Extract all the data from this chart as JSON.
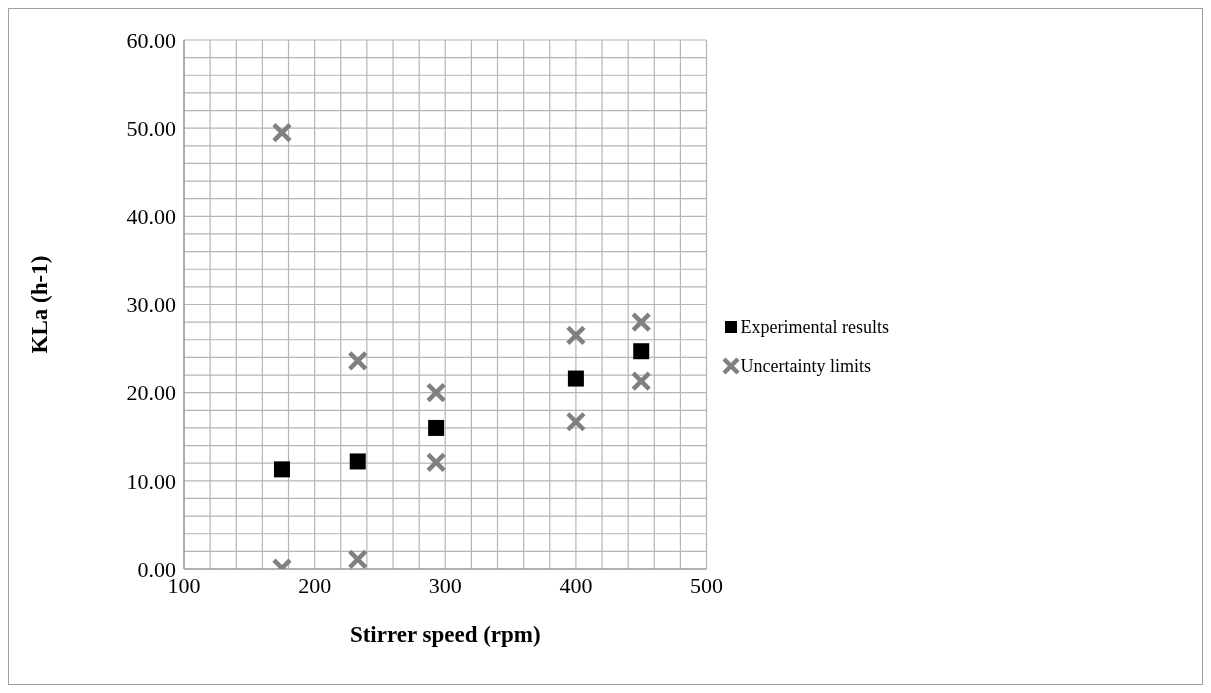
{
  "chart_data": {
    "type": "scatter",
    "xlabel": "Stirrer speed (rpm)",
    "ylabel": "KLa (h-1)",
    "xlim": [
      100,
      500
    ],
    "xticks": [
      100,
      {
        "value": 120,
        "label": null
      },
      {
        "value": 140,
        "label": null
      },
      {
        "value": 160,
        "label": null
      },
      {
        "value": 180,
        "label": null
      },
      200,
      {
        "value": 220,
        "label": null
      },
      {
        "value": 240,
        "label": null
      },
      {
        "value": 260,
        "label": null
      },
      {
        "value": 280,
        "label": null
      },
      300,
      {
        "value": 320,
        "label": null
      },
      {
        "value": 340,
        "label": null
      },
      {
        "value": 360,
        "label": null
      },
      {
        "value": 380,
        "label": null
      },
      400,
      {
        "value": 420,
        "label": null
      },
      {
        "value": 440,
        "label": null
      },
      {
        "value": 460,
        "label": null
      },
      {
        "value": 480,
        "label": null
      },
      500
    ],
    "ylim": [
      0,
      60
    ],
    "yticks": [
      {
        "value": 0,
        "label": "0.00"
      },
      {
        "value": 2,
        "label": null
      },
      {
        "value": 4,
        "label": null
      },
      {
        "value": 6,
        "label": null
      },
      {
        "value": 8,
        "label": null
      },
      {
        "value": 10,
        "label": "10.00"
      },
      {
        "value": 12,
        "label": null
      },
      {
        "value": 14,
        "label": null
      },
      {
        "value": 16,
        "label": null
      },
      {
        "value": 18,
        "label": null
      },
      {
        "value": 20,
        "label": "20.00"
      },
      {
        "value": 22,
        "label": null
      },
      {
        "value": 24,
        "label": null
      },
      {
        "value": 26,
        "label": null
      },
      {
        "value": 28,
        "label": null
      },
      {
        "value": 30,
        "label": "30.00"
      },
      {
        "value": 32,
        "label": null
      },
      {
        "value": 34,
        "label": null
      },
      {
        "value": 36,
        "label": null
      },
      {
        "value": 38,
        "label": null
      },
      {
        "value": 40,
        "label": "40.00"
      },
      {
        "value": 42,
        "label": null
      },
      {
        "value": 44,
        "label": null
      },
      {
        "value": 46,
        "label": null
      },
      {
        "value": 48,
        "label": null
      },
      {
        "value": 50,
        "label": "50.00"
      },
      {
        "value": 52,
        "label": null
      },
      {
        "value": 54,
        "label": null
      },
      {
        "value": 56,
        "label": null
      },
      {
        "value": 58,
        "label": null
      },
      {
        "value": 60,
        "label": "60.00"
      }
    ],
    "grid": true,
    "legend": "right",
    "series": [
      {
        "name": "Experimental results",
        "color": "#000000",
        "marker": "square",
        "x": [
          175,
          233,
          293,
          400,
          450
        ],
        "values": [
          11.3,
          12.2,
          16.0,
          21.6,
          24.7
        ]
      },
      {
        "name": "Uncertainty limits",
        "color": "#808080",
        "marker": "cross",
        "x": [
          175,
          175,
          233,
          233,
          293,
          293,
          400,
          400,
          450,
          450
        ],
        "values": [
          49.5,
          0.1,
          23.6,
          1.1,
          20.0,
          12.1,
          26.5,
          16.7,
          28.0,
          21.3
        ]
      }
    ]
  }
}
